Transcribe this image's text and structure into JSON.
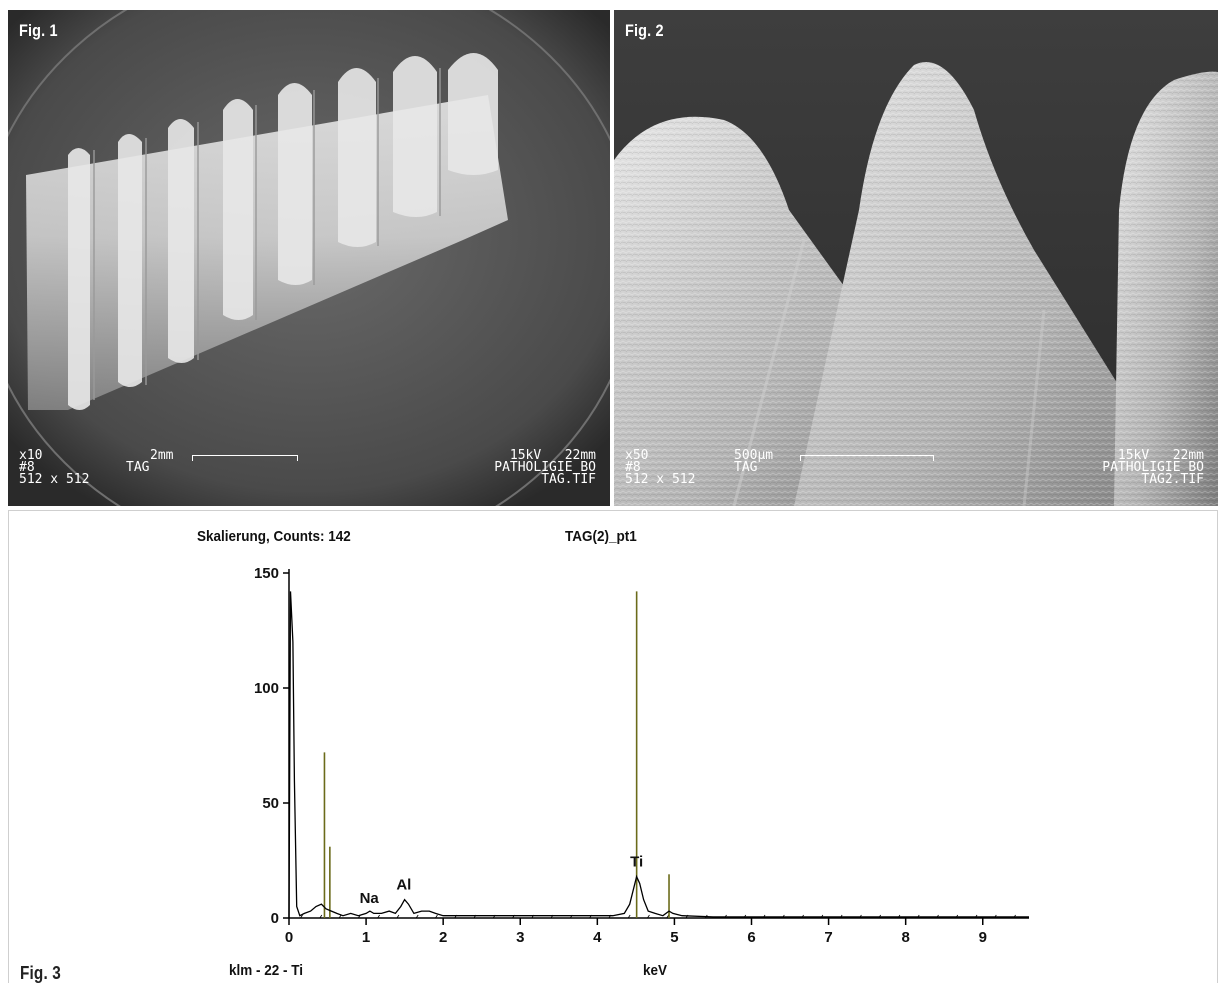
{
  "figures": {
    "fig1": {
      "label": "Fig. 1",
      "sem": {
        "magnification": "x10",
        "scale": "2mm",
        "sample_no": "#8",
        "sample_name": "TAG",
        "resolution": "512 x 512",
        "voltage_wd": "15kV   22mm",
        "lab": "PATHOLIGIE BO",
        "file": "TAG.TIF"
      }
    },
    "fig2": {
      "label": "Fig. 2",
      "sem": {
        "magnification": "x50",
        "scale": "500µm",
        "sample_no": "#8",
        "sample_name": "TAG",
        "resolution": "512 x 512",
        "voltage_wd": "15kV   22mm",
        "lab": "PATHOLIGIE BO",
        "file": "TAG2.TIF"
      }
    },
    "fig3": {
      "label": "Fig. 3",
      "scaling_text": "Skalierung, Counts: 142",
      "spectrum_name": "TAG(2)_pt1",
      "footer_left": "klm - 22 - Ti",
      "xlabel": "keV"
    }
  },
  "chart_data": {
    "type": "line",
    "title": "TAG(2)_pt1",
    "subtitle": "Skalierung, Counts: 142",
    "xlabel": "keV",
    "ylabel": "",
    "xlim": [
      0,
      9.6
    ],
    "ylim": [
      0,
      150
    ],
    "x_ticks": [
      0,
      1,
      2,
      3,
      4,
      5,
      6,
      7,
      8,
      9
    ],
    "y_ticks": [
      0,
      50,
      100,
      150
    ],
    "grid": false,
    "spectrum_color": "#000000",
    "marker_color": "#6b6b1a",
    "spectrum_points": [
      [
        0.0,
        0
      ],
      [
        0.02,
        142
      ],
      [
        0.05,
        120
      ],
      [
        0.07,
        60
      ],
      [
        0.1,
        5
      ],
      [
        0.14,
        1
      ],
      [
        0.2,
        2
      ],
      [
        0.28,
        3
      ],
      [
        0.35,
        5
      ],
      [
        0.42,
        6
      ],
      [
        0.48,
        4
      ],
      [
        0.55,
        3
      ],
      [
        0.62,
        2
      ],
      [
        0.7,
        1
      ],
      [
        0.8,
        2
      ],
      [
        0.9,
        1
      ],
      [
        1.0,
        2
      ],
      [
        1.05,
        3
      ],
      [
        1.1,
        2
      ],
      [
        1.2,
        2
      ],
      [
        1.3,
        3
      ],
      [
        1.38,
        2
      ],
      [
        1.45,
        5
      ],
      [
        1.5,
        8
      ],
      [
        1.55,
        6
      ],
      [
        1.62,
        2
      ],
      [
        1.72,
        3
      ],
      [
        1.82,
        3
      ],
      [
        1.9,
        2
      ],
      [
        2.0,
        1
      ],
      [
        2.2,
        1
      ],
      [
        2.5,
        1
      ],
      [
        3.0,
        1
      ],
      [
        3.5,
        1
      ],
      [
        4.0,
        1
      ],
      [
        4.2,
        1
      ],
      [
        4.35,
        2
      ],
      [
        4.42,
        6
      ],
      [
        4.48,
        14
      ],
      [
        4.51,
        18
      ],
      [
        4.55,
        15
      ],
      [
        4.6,
        8
      ],
      [
        4.66,
        3
      ],
      [
        4.75,
        2
      ],
      [
        4.85,
        1
      ],
      [
        4.93,
        3
      ],
      [
        4.98,
        2
      ],
      [
        5.1,
        1
      ],
      [
        5.5,
        0.5
      ],
      [
        6.0,
        0.5
      ],
      [
        7.0,
        0.5
      ],
      [
        8.0,
        0.5
      ],
      [
        9.0,
        0.5
      ],
      [
        9.6,
        0.5
      ]
    ],
    "markers": [
      {
        "x": 0.46,
        "y": 72
      },
      {
        "x": 0.53,
        "y": 31
      },
      {
        "x": 4.51,
        "y": 142
      },
      {
        "x": 4.93,
        "y": 19
      }
    ],
    "annotations": [
      {
        "text": "Na",
        "x": 1.04,
        "y": 3
      },
      {
        "text": "Al",
        "x": 1.49,
        "y": 9
      },
      {
        "text": "Ti",
        "x": 4.51,
        "y": 19
      }
    ]
  }
}
